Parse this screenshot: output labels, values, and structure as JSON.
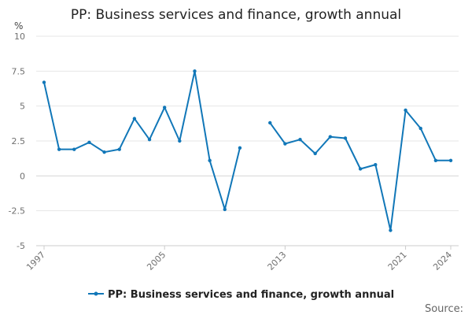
{
  "chart_data": {
    "type": "line",
    "title": "PP: Business services and finance, growth annual",
    "y_unit": "%",
    "ylim": [
      -5,
      10
    ],
    "y_ticks": [
      -5,
      -2.5,
      0,
      2.5,
      5,
      7.5,
      10
    ],
    "y_tick_labels": [
      "-5",
      "-2.5",
      "0",
      "2.5",
      "5",
      "7.5",
      "10"
    ],
    "xlim": [
      1997,
      2024
    ],
    "x_ticks": [
      1997,
      2005,
      2013,
      2021,
      2024
    ],
    "x_tick_labels": [
      "1997",
      "2005",
      "2013",
      "2021",
      "2024"
    ],
    "grid": "horizontal",
    "legend_position": "bottom",
    "series": [
      {
        "name": "PP: Business services and finance, growth annual",
        "color": "#1177b8",
        "x": [
          1997,
          1998,
          1999,
          2000,
          2001,
          2002,
          2003,
          2004,
          2005,
          2006,
          2007,
          2008,
          2009,
          2010,
          2011,
          2012,
          2013,
          2014,
          2015,
          2016,
          2017,
          2018,
          2019,
          2020,
          2021,
          2022,
          2023,
          2024
        ],
        "y": [
          6.7,
          1.9,
          1.9,
          2.4,
          1.7,
          1.9,
          4.1,
          2.6,
          4.9,
          2.5,
          7.5,
          1.1,
          -2.4,
          2.0,
          null,
          3.8,
          2.3,
          2.6,
          1.6,
          2.8,
          2.7,
          0.5,
          0.8,
          -3.9,
          4.7,
          3.4,
          1.1,
          1.1
        ]
      }
    ]
  },
  "source_label": "Source:"
}
